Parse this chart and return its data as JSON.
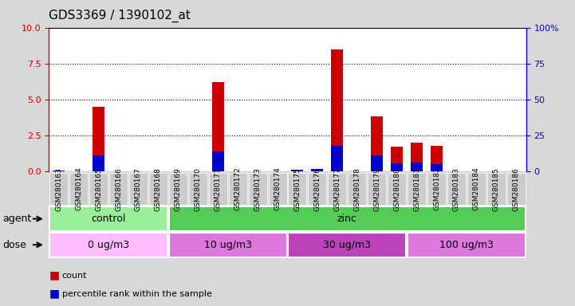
{
  "title": "GDS3369 / 1390102_at",
  "samples": [
    "GSM280163",
    "GSM280164",
    "GSM280165",
    "GSM280166",
    "GSM280167",
    "GSM280168",
    "GSM280169",
    "GSM280170",
    "GSM280171",
    "GSM280172",
    "GSM280173",
    "GSM280174",
    "GSM280175",
    "GSM280176",
    "GSM280177",
    "GSM280178",
    "GSM280179",
    "GSM280180",
    "GSM280181",
    "GSM280182",
    "GSM280183",
    "GSM280184",
    "GSM280185",
    "GSM280186"
  ],
  "count_values": [
    0,
    0,
    4.5,
    0,
    0,
    0,
    0,
    0,
    6.2,
    0,
    0,
    0,
    0,
    0,
    8.5,
    0,
    3.8,
    1.7,
    2.0,
    1.8,
    0,
    0,
    0,
    0
  ],
  "percentile_values": [
    0.8,
    0,
    11,
    0,
    0,
    0,
    0,
    0,
    14,
    0,
    0,
    0,
    1,
    1.5,
    18,
    0,
    11,
    5.5,
    6,
    5,
    0,
    0,
    0,
    0
  ],
  "ylim_left": [
    0,
    10
  ],
  "ylim_right": [
    0,
    100
  ],
  "yticks_left": [
    0,
    2.5,
    5.0,
    7.5,
    10
  ],
  "yticks_right": [
    0,
    25,
    50,
    75,
    100
  ],
  "bar_color_count": "#cc0000",
  "bar_color_pct": "#0000cc",
  "bar_width": 0.6,
  "agent_groups": [
    {
      "label": "control",
      "start": 0,
      "end": 5,
      "color": "#99ee99"
    },
    {
      "label": "zinc",
      "start": 6,
      "end": 23,
      "color": "#55cc55"
    }
  ],
  "dose_groups": [
    {
      "label": "0 ug/m3",
      "start": 0,
      "end": 5,
      "color": "#ffbbff"
    },
    {
      "label": "10 ug/m3",
      "start": 6,
      "end": 11,
      "color": "#dd77dd"
    },
    {
      "label": "30 ug/m3",
      "start": 12,
      "end": 17,
      "color": "#bb44bb"
    },
    {
      "label": "100 ug/m3",
      "start": 18,
      "end": 23,
      "color": "#dd77dd"
    }
  ],
  "bg_color": "#d8d8d8",
  "plot_bg": "#ffffff",
  "tick_box_color": "#cccccc",
  "left_axis_color": "#cc0000",
  "right_axis_color": "#0000cc",
  "tick_label_fontsize": 6.5,
  "title_fontsize": 11,
  "agent_fontsize": 9,
  "dose_fontsize": 9
}
